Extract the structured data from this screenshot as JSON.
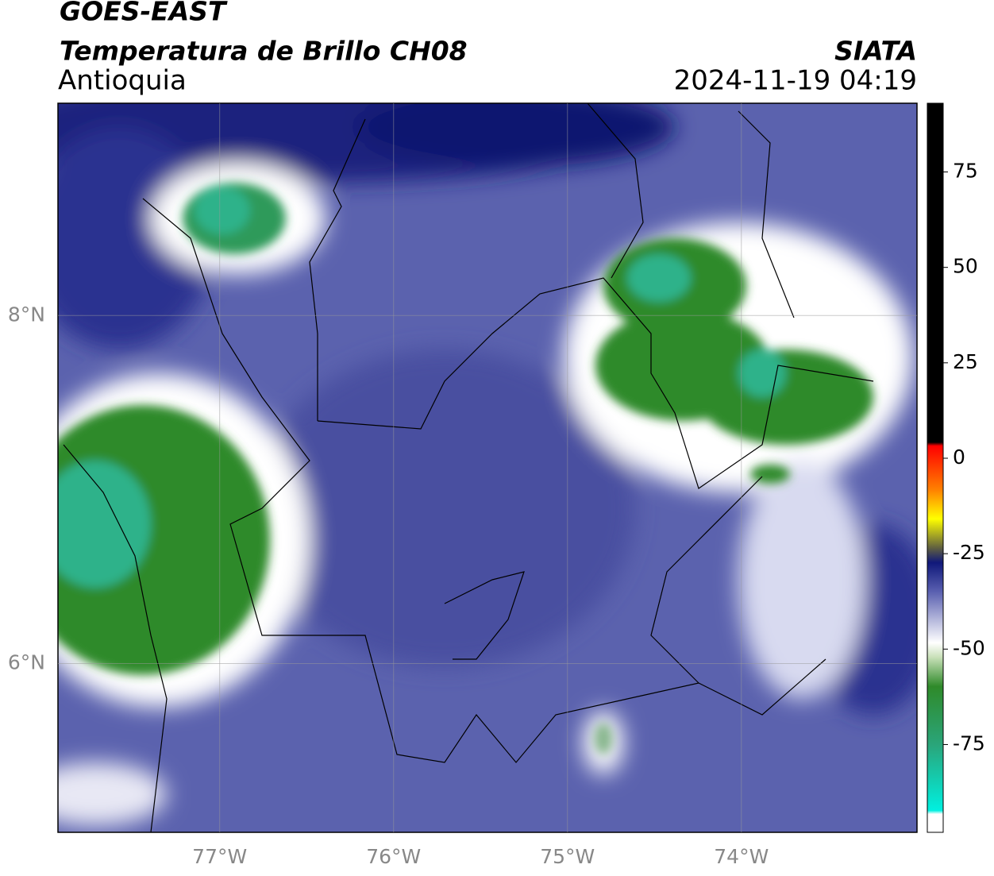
{
  "header": {
    "title": "GOES-EAST",
    "subtitle": "Temperatura de Brillo CH08",
    "region": "Antioquia",
    "source": "SIATA",
    "datetime": "2024-11-19 04:19"
  },
  "map": {
    "xlim": [
      -77.93,
      -72.99
    ],
    "ylim": [
      5.03,
      9.22
    ],
    "xticks": [
      {
        "value": -77,
        "label": "77°W"
      },
      {
        "value": -76,
        "label": "76°W"
      },
      {
        "value": -75,
        "label": "75°W"
      },
      {
        "value": -74,
        "label": "74°W"
      }
    ],
    "yticks": [
      {
        "value": 6,
        "label": "6°N"
      },
      {
        "value": 8,
        "label": "8°N"
      }
    ],
    "grid": true
  },
  "colorbar": {
    "lim": [
      -98,
      93
    ],
    "ticks": [
      -75,
      -50,
      -25,
      0,
      25,
      50,
      75
    ]
  }
}
